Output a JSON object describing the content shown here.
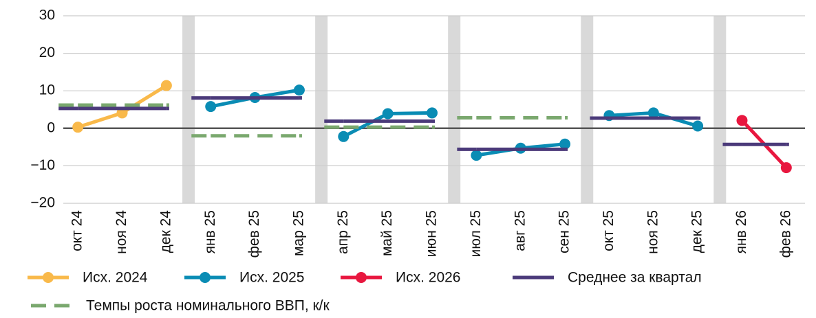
{
  "chart_data": {
    "type": "line",
    "categories": [
      "окт 24",
      "ноя 24",
      "дек 24",
      "янв 25",
      "фев 25",
      "мар 25",
      "апр 25",
      "май 25",
      "июн 25",
      "июл 25",
      "авг 25",
      "сен 25",
      "окт 25",
      "ноя 25",
      "дек 25",
      "янв 26",
      "фев 26"
    ],
    "series": [
      {
        "name": "Исх. 2024",
        "color": "#f9b94a",
        "style": "markers",
        "values": [
          0.3,
          4.1,
          11.4,
          null,
          null,
          null,
          null,
          null,
          null,
          null,
          null,
          null,
          null,
          null,
          null,
          null,
          null
        ]
      },
      {
        "name": "Исх. 2025",
        "color": "#0a8cb4",
        "style": "markers",
        "values": [
          null,
          null,
          null,
          5.8,
          8.2,
          10.2,
          -2.2,
          3.9,
          4.1,
          -7.2,
          -5.3,
          -4.2,
          3.4,
          4.1,
          0.6,
          null,
          null
        ]
      },
      {
        "name": "Исх. 2026",
        "color": "#e8173f",
        "style": "markers",
        "values": [
          null,
          null,
          null,
          null,
          null,
          null,
          null,
          null,
          null,
          null,
          null,
          null,
          null,
          null,
          null,
          2.1,
          -10.5
        ]
      },
      {
        "name": "Среднее за квартал",
        "color": "#4b3a7a",
        "style": "solid",
        "values": [
          5.3,
          5.3,
          5.3,
          8.1,
          8.1,
          8.1,
          1.9,
          1.9,
          1.9,
          -5.6,
          -5.6,
          -5.6,
          2.7,
          2.7,
          2.7,
          -4.3,
          -4.3
        ]
      },
      {
        "name": "Темпы роста номинального ВВП, к/к",
        "color": "#7aa86e",
        "style": "dashed",
        "values": [
          6.2,
          6.2,
          6.2,
          -2.0,
          -2.0,
          -2.0,
          0.3,
          0.3,
          0.3,
          2.8,
          2.8,
          2.8,
          null,
          null,
          null,
          null,
          null
        ]
      }
    ],
    "ylim": [
      -20,
      30
    ],
    "yticks": [
      {
        "value": -20,
        "label": "−20"
      },
      {
        "value": -10,
        "label": "−10"
      },
      0,
      10,
      20,
      30
    ],
    "grid": true,
    "legend": "bottom"
  }
}
